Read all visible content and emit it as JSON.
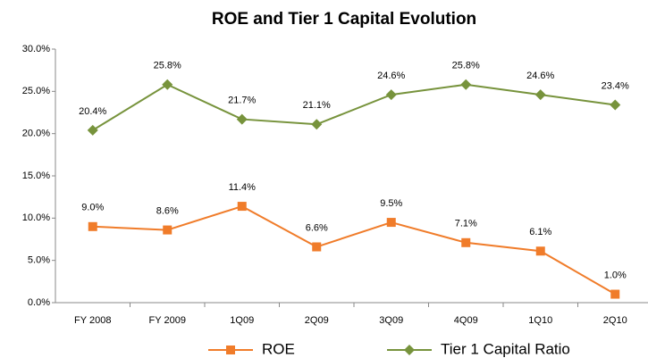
{
  "chart_data": {
    "type": "line",
    "title": "ROE and Tier 1 Capital Evolution",
    "categories": [
      "FY 2008",
      "FY 2009",
      "1Q09",
      "2Q09",
      "3Q09",
      "4Q09",
      "1Q10",
      "2Q10"
    ],
    "series": [
      {
        "name": "ROE",
        "color": "#f07c2a",
        "marker": "square",
        "values": [
          9.0,
          8.6,
          11.4,
          6.6,
          9.5,
          7.1,
          6.1,
          1.0
        ],
        "value_labels": [
          "9.0%",
          "8.6%",
          "11.4%",
          "6.6%",
          "9.5%",
          "7.1%",
          "6.1%",
          "1.0%"
        ]
      },
      {
        "name": "Tier 1 Capital Ratio",
        "color": "#77933c",
        "marker": "diamond",
        "values": [
          20.4,
          25.8,
          21.7,
          21.1,
          24.6,
          25.8,
          24.6,
          23.4
        ],
        "value_labels": [
          "20.4%",
          "25.8%",
          "21.7%",
          "21.1%",
          "24.6%",
          "25.8%",
          "24.6%",
          "23.4%"
        ]
      }
    ],
    "ylim": [
      0,
      30
    ],
    "yticks": [
      {
        "value": 0,
        "label": "0.0%"
      },
      {
        "value": 5,
        "label": "5.0%"
      },
      {
        "value": 10,
        "label": "10.0%"
      },
      {
        "value": 15,
        "label": "15.0%"
      },
      {
        "value": 20,
        "label": "20.0%"
      },
      {
        "value": 25,
        "label": "25.0%"
      },
      {
        "value": 30,
        "label": "30.0%"
      }
    ],
    "grid": false,
    "legend": "bottom"
  }
}
